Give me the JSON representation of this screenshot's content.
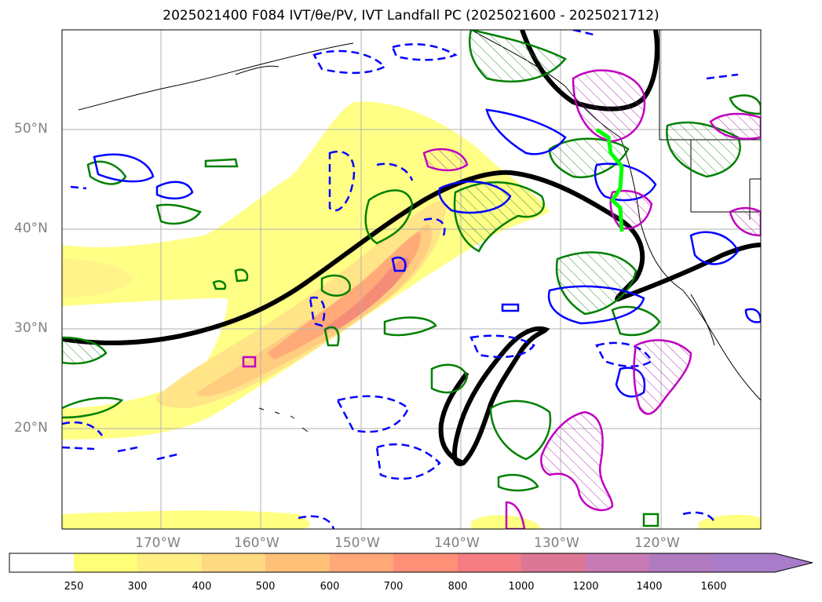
{
  "title": "2025021400 F084 IVT/θe/PV, IVT Landfall PC (2025021600 - 2025021712)",
  "lat_labels": [
    "50°N",
    "40°N",
    "30°N",
    "20°N"
  ],
  "lon_labels": [
    "170°W",
    "160°W",
    "150°W",
    "140°W",
    "130°W",
    "120°W"
  ],
  "colorbar": {
    "ticks": [
      "250",
      "300",
      "400",
      "500",
      "600",
      "700",
      "800",
      "1000",
      "1200",
      "1400",
      "1600"
    ],
    "colors": [
      "#ffffff",
      "#ffff78",
      "#ffee82",
      "#ffd882",
      "#ffc078",
      "#ffa878",
      "#ff9078",
      "#f47c82",
      "#dc7896",
      "#c87ab4",
      "#a87cc8"
    ],
    "extend": "max"
  },
  "legend_colors": {
    "ivt_fill": "#ffd070",
    "jet_line": "#000000",
    "green_contour": "#008000",
    "blue_contour": "#0000ff",
    "magenta_contour": "#c000c0",
    "landfall_line": "#00ff00"
  }
}
